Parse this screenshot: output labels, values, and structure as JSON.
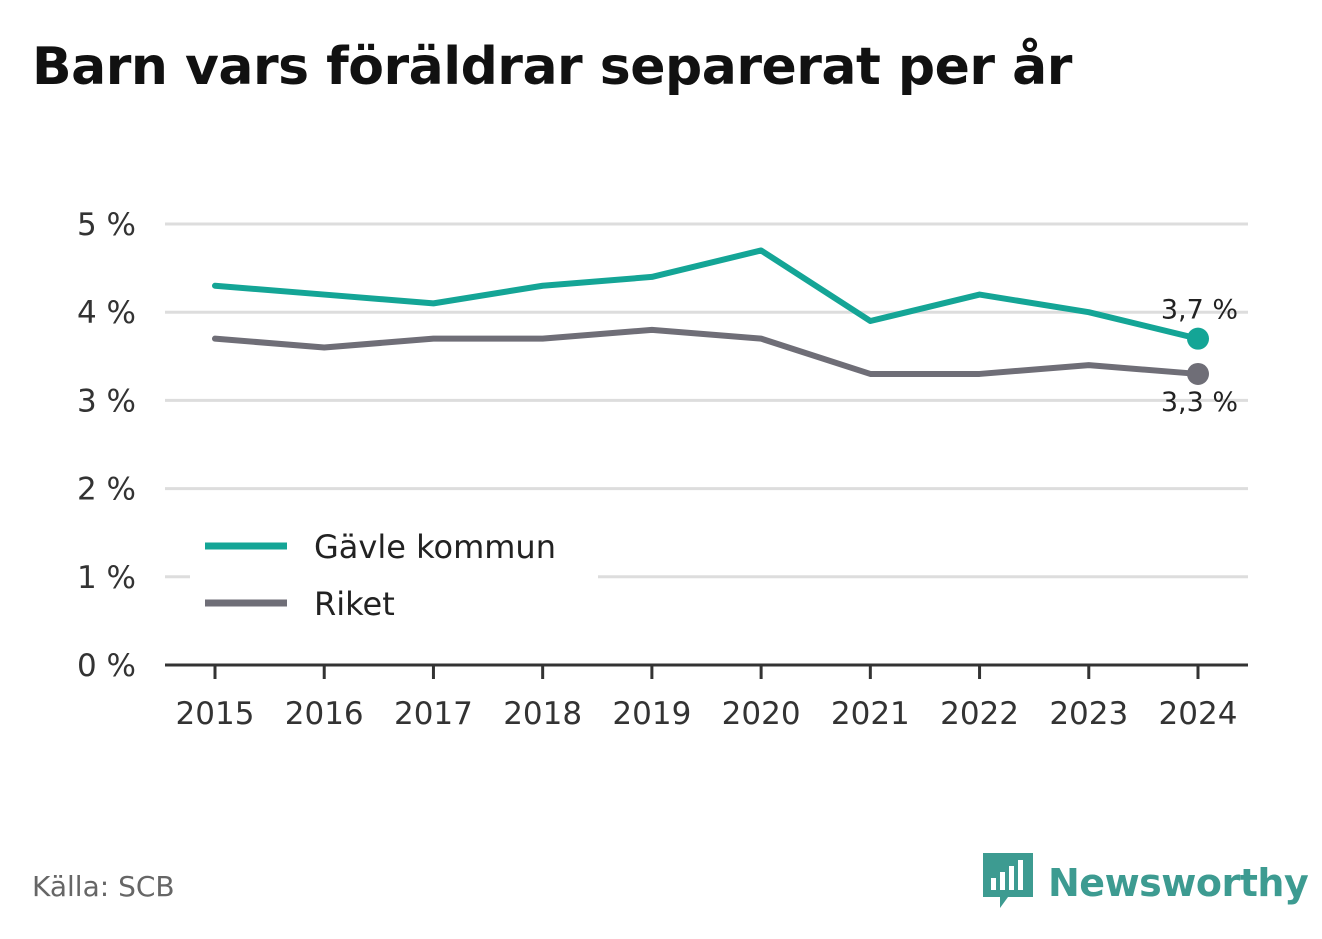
{
  "title": "Barn vars föräldrar separerat per år",
  "source": "Källa: SCB",
  "brand": {
    "name": "Newsworthy",
    "icon": "bar-chart-speech-bubble-icon",
    "color": "#3d9b91"
  },
  "chart_data": {
    "type": "line",
    "title": "Barn vars föräldrar separerat per år",
    "x": [
      "2015",
      "2016",
      "2017",
      "2018",
      "2019",
      "2020",
      "2021",
      "2022",
      "2023",
      "2024"
    ],
    "ylim": [
      0,
      5
    ],
    "yticks": [
      0,
      1,
      2,
      3,
      4,
      5
    ],
    "ytick_labels": [
      "0 %",
      "1 %",
      "2 %",
      "3 %",
      "4 %",
      "5 %"
    ],
    "grid": true,
    "legend_position": "bottom-left",
    "series": [
      {
        "name": "Gävle kommun",
        "color": "#14a596",
        "values": [
          4.3,
          4.2,
          4.1,
          4.3,
          4.4,
          4.7,
          3.9,
          4.2,
          4.0,
          3.7
        ],
        "end_label": "3,7 %"
      },
      {
        "name": "Riket",
        "color": "#6f6e77",
        "values": [
          3.7,
          3.6,
          3.7,
          3.7,
          3.8,
          3.7,
          3.3,
          3.3,
          3.4,
          3.3
        ],
        "end_label": "3,3 %"
      }
    ]
  }
}
